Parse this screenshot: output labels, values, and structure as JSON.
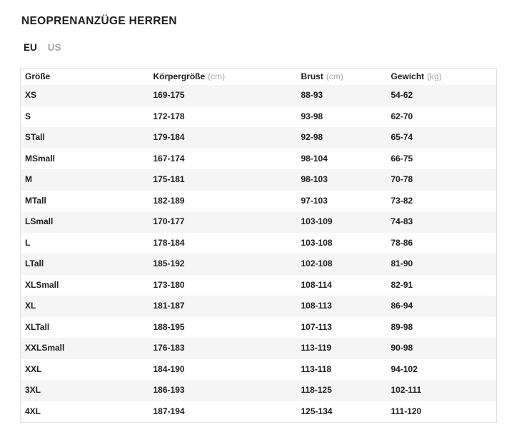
{
  "page": {
    "title": "NEOPRENANZÜGE HERREN"
  },
  "tabs": [
    {
      "label": "EU",
      "active": true
    },
    {
      "label": "US",
      "active": false
    }
  ],
  "table": {
    "columns": [
      {
        "label": "Größe",
        "unit": ""
      },
      {
        "label": "Körpergröße",
        "unit": "(cm)"
      },
      {
        "label": "Brust",
        "unit": "(cm)"
      },
      {
        "label": "Gewicht",
        "unit": "(kg)"
      }
    ],
    "rows": [
      [
        "XS",
        "169-175",
        "88-93",
        "54-62"
      ],
      [
        "S",
        "172-178",
        "93-98",
        "62-70"
      ],
      [
        "STall",
        "179-184",
        "92-98",
        "65-74"
      ],
      [
        "MSmall",
        "167-174",
        "98-104",
        "66-75"
      ],
      [
        "M",
        "175-181",
        "98-103",
        "70-78"
      ],
      [
        "MTall",
        "182-189",
        "97-103",
        "73-82"
      ],
      [
        "LSmall",
        "170-177",
        "103-109",
        "74-83"
      ],
      [
        "L",
        "178-184",
        "103-108",
        "78-86"
      ],
      [
        "LTall",
        "185-192",
        "102-108",
        "81-90"
      ],
      [
        "XLSmall",
        "173-180",
        "108-114",
        "82-91"
      ],
      [
        "XL",
        "181-187",
        "108-113",
        "86-94"
      ],
      [
        "XLTall",
        "188-195",
        "107-113",
        "89-98"
      ],
      [
        "XXLSmall",
        "176-183",
        "113-119",
        "90-98"
      ],
      [
        "XXL",
        "184-190",
        "113-118",
        "94-102"
      ],
      [
        "3XL",
        "186-193",
        "118-125",
        "102-111"
      ],
      [
        "4XL",
        "187-194",
        "125-134",
        "111-120"
      ]
    ]
  },
  "colors": {
    "text": "#1d1d1f",
    "muted": "#a6a6a6",
    "row_alt_bg": "#f5f5f5",
    "border": "#e1e1e1"
  }
}
